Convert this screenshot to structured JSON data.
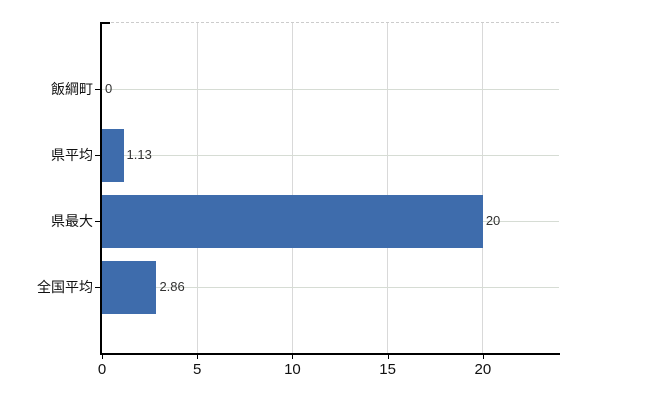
{
  "chart_data": {
    "type": "bar",
    "orientation": "horizontal",
    "title": "",
    "xlabel": "",
    "ylabel": "",
    "categories": [
      "飯綱町",
      "県平均",
      "県最大",
      "全国平均"
    ],
    "values": [
      0,
      1.13,
      20,
      2.86
    ],
    "value_labels": [
      "0",
      "1.13",
      "20",
      "2.86"
    ],
    "xlim": [
      0,
      24
    ],
    "xticks": [
      0,
      5,
      10,
      15,
      20
    ],
    "xtick_labels": [
      "0",
      "5",
      "10",
      "15",
      "20"
    ],
    "grid": true,
    "legend": false,
    "colors": {
      "bar": "#3e6cac",
      "axis": "#000000",
      "grid_vertical": "#d9d9d9",
      "grid_horizontal": "#d6dcd4",
      "plot_top_border": "#cccccc",
      "category_text": "#111111",
      "value_text": "#333333",
      "tick_text": "#111111",
      "background": "#ffffff"
    }
  }
}
